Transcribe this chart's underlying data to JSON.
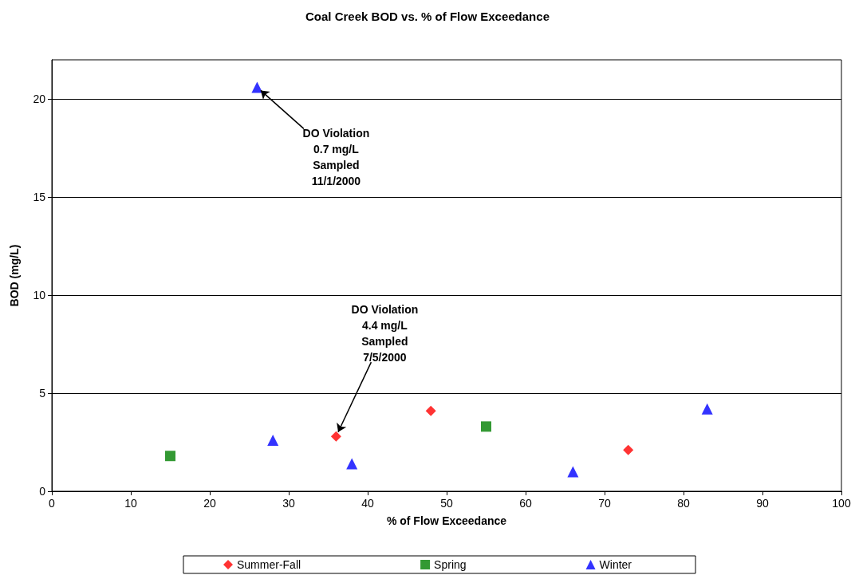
{
  "chart_data": {
    "type": "scatter",
    "title": "Coal Creek BOD vs. % of Flow Exceedance",
    "xlabel": "% of Flow Exceedance",
    "ylabel": "BOD (mg/L)",
    "series": [
      {
        "name": "Summer-Fall",
        "color": "#ff0000",
        "marker": "diamond",
        "x": [
          36,
          48,
          73
        ],
        "values": [
          2.8,
          4.1,
          2.1
        ]
      },
      {
        "name": "Spring",
        "color": "#008000",
        "marker": "square",
        "x": [
          15,
          55
        ],
        "values": [
          1.8,
          3.3
        ]
      },
      {
        "name": "Winter",
        "color": "#0000ff",
        "marker": "triangle",
        "x": [
          26,
          28,
          38,
          66,
          83
        ],
        "values": [
          20.6,
          2.6,
          1.4,
          1.0,
          4.2
        ]
      }
    ],
    "xlim": [
      0,
      100
    ],
    "xticks": [
      0,
      10,
      20,
      30,
      40,
      50,
      60,
      70,
      80,
      90,
      100
    ],
    "ylim": [
      0,
      22
    ],
    "yticks": [
      0,
      5,
      10,
      15,
      20
    ],
    "grid": "y",
    "legend": "bottom",
    "annotations": [
      {
        "text": "DO Violation\n0.7 mg/L\nSampled\n11/1/2000",
        "x": 26,
        "y": 20.6
      },
      {
        "text": "DO Violation\n4.4 mg/L\nSampled\n7/5/2000",
        "x": 36,
        "y": 2.8
      }
    ]
  }
}
